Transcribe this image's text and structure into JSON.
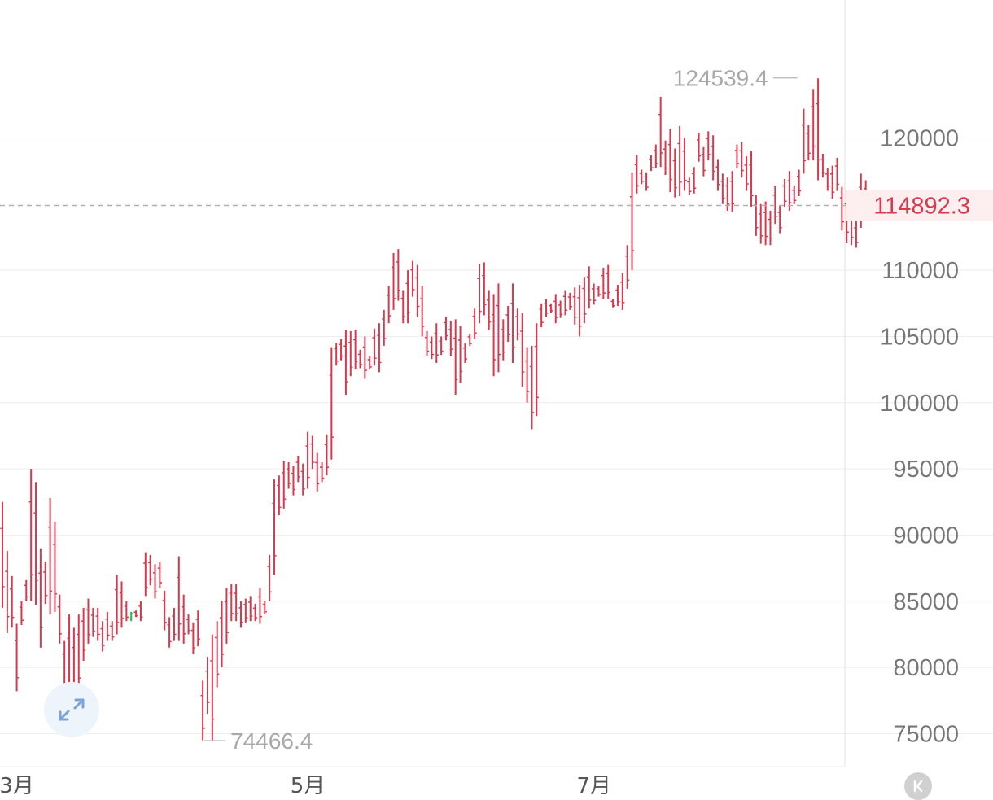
{
  "chart_data": {
    "type": "ohlc",
    "y_axis_ticks": [
      "120000",
      "110000",
      "105000",
      "100000",
      "95000",
      "90000",
      "85000",
      "80000",
      "75000"
    ],
    "y_axis_values": [
      120000,
      110000,
      105000,
      100000,
      95000,
      90000,
      85000,
      80000,
      75000
    ],
    "ylim": [
      73000,
      125500
    ],
    "x_axis_labels": [
      {
        "label": "3月",
        "index": 3
      },
      {
        "label": "5月",
        "index": 64
      },
      {
        "label": "7月",
        "index": 124
      }
    ],
    "current_price": 114892.3,
    "current_price_label": "114892.3",
    "max_label": "124539.4",
    "max_index": 167,
    "min_label": "74466.4",
    "min_index": 42,
    "colors": {
      "up": "#2ab44a",
      "down": "#d9394f",
      "grid": "#eeeeee",
      "price_line": "#b0b0b0",
      "price_tag_bg": "#fdeef0"
    },
    "candles": [
      [
        92500,
        84500
      ],
      [
        88800,
        82600
      ],
      [
        86900,
        83000
      ],
      [
        83300,
        78200
      ],
      [
        85000,
        83200
      ],
      [
        86600,
        85000
      ],
      [
        95000,
        85000
      ],
      [
        94000,
        84700
      ],
      [
        89000,
        81500
      ],
      [
        88000,
        84800
      ],
      [
        92800,
        84000
      ],
      [
        91000,
        84200
      ],
      [
        85500,
        81800
      ],
      [
        82000,
        78000
      ],
      [
        84000,
        76800
      ],
      [
        83000,
        77000
      ],
      [
        84000,
        78000
      ],
      [
        84500,
        80500
      ],
      [
        85200,
        81800
      ],
      [
        84500,
        82300
      ],
      [
        84500,
        82000
      ],
      [
        83500,
        81200
      ],
      [
        84200,
        82000
      ],
      [
        83500,
        82000
      ],
      [
        87000,
        82500
      ],
      [
        86500,
        83000
      ],
      [
        85000,
        83500
      ],
      [
        83500,
        84200
      ],
      [
        84300,
        83800
      ],
      [
        85000,
        83500
      ],
      [
        88700,
        85400
      ],
      [
        88500,
        86200
      ],
      [
        87800,
        85200
      ],
      [
        88000,
        86000
      ],
      [
        85800,
        82800
      ],
      [
        83800,
        81500
      ],
      [
        84500,
        82000
      ],
      [
        88400,
        82000
      ],
      [
        85500,
        81800
      ],
      [
        84000,
        82500
      ],
      [
        83400,
        81000
      ],
      [
        84300,
        81600
      ],
      [
        79000,
        74500
      ],
      [
        80800,
        76500
      ],
      [
        82500,
        74500
      ],
      [
        83500,
        78500
      ],
      [
        85000,
        80000
      ],
      [
        86000,
        81800
      ],
      [
        86300,
        83500
      ],
      [
        86300,
        83500
      ],
      [
        85000,
        83000
      ],
      [
        85200,
        83400
      ],
      [
        85400,
        83500
      ],
      [
        84800,
        83500
      ],
      [
        86000,
        83300
      ],
      [
        85000,
        84000
      ],
      [
        88500,
        85000
      ],
      [
        94200,
        87000
      ],
      [
        94500,
        91500
      ],
      [
        95600,
        92000
      ],
      [
        95500,
        93500
      ],
      [
        95200,
        93000
      ],
      [
        96000,
        94000
      ],
      [
        95400,
        93000
      ],
      [
        97800,
        93500
      ],
      [
        97500,
        95000
      ],
      [
        96200,
        93300
      ],
      [
        95500,
        94000
      ],
      [
        97600,
        94500
      ],
      [
        104200,
        95700
      ],
      [
        104500,
        102800
      ],
      [
        104800,
        103200
      ],
      [
        105500,
        100600
      ],
      [
        105400,
        102000
      ],
      [
        105500,
        102500
      ],
      [
        104000,
        102600
      ],
      [
        105000,
        101800
      ],
      [
        103500,
        102500
      ],
      [
        105600,
        102800
      ],
      [
        106000,
        102300
      ],
      [
        107000,
        104300
      ],
      [
        108800,
        106000
      ],
      [
        111300,
        107000
      ],
      [
        111600,
        107700
      ],
      [
        108500,
        106000
      ],
      [
        110000,
        106000
      ],
      [
        110700,
        108000
      ],
      [
        110400,
        106500
      ],
      [
        108800,
        105000
      ],
      [
        105400,
        103500
      ],
      [
        105000,
        103300
      ],
      [
        106000,
        103000
      ],
      [
        105000,
        103600
      ],
      [
        106500,
        104700
      ],
      [
        106200,
        103500
      ],
      [
        106300,
        100600
      ],
      [
        105800,
        101500
      ],
      [
        104500,
        103000
      ],
      [
        105200,
        104300
      ],
      [
        107100,
        104800
      ],
      [
        110500,
        106000
      ],
      [
        110600,
        106600
      ],
      [
        108500,
        105500
      ],
      [
        108200,
        102000
      ],
      [
        109000,
        102300
      ],
      [
        106300,
        103200
      ],
      [
        107300,
        104600
      ],
      [
        109000,
        103000
      ],
      [
        107100,
        104700
      ],
      [
        106800,
        101200
      ],
      [
        104200,
        100000
      ],
      [
        104300,
        98000
      ],
      [
        106000,
        99000
      ],
      [
        107500,
        105700
      ],
      [
        107800,
        106500
      ],
      [
        107500,
        106800
      ],
      [
        108200,
        106000
      ],
      [
        107700,
        106400
      ],
      [
        108500,
        106600
      ],
      [
        108300,
        107000
      ],
      [
        108700,
        105900
      ],
      [
        108900,
        105000
      ],
      [
        109500,
        106000
      ],
      [
        110300,
        107100
      ],
      [
        109000,
        107400
      ],
      [
        108800,
        108000
      ],
      [
        110200,
        107800
      ],
      [
        110400,
        107800
      ],
      [
        107800,
        107200
      ],
      [
        108900,
        107300
      ],
      [
        109800,
        107000
      ],
      [
        111900,
        108600
      ],
      [
        117400,
        110000
      ],
      [
        118700,
        115800
      ],
      [
        117600,
        116500
      ],
      [
        117400,
        116000
      ],
      [
        118700,
        117500
      ],
      [
        119500,
        117700
      ],
      [
        123100,
        117800
      ],
      [
        119800,
        117200
      ],
      [
        120700,
        115900
      ],
      [
        119200,
        115500
      ],
      [
        120900,
        115600
      ],
      [
        120000,
        116000
      ],
      [
        117000,
        115700
      ],
      [
        117800,
        115800
      ],
      [
        120400,
        118200
      ],
      [
        119300,
        117100
      ],
      [
        120500,
        118300
      ],
      [
        120200,
        116800
      ],
      [
        118400,
        116000
      ],
      [
        117300,
        115000
      ],
      [
        117000,
        114500
      ],
      [
        117500,
        114400
      ],
      [
        119500,
        117700
      ],
      [
        119700,
        117000
      ],
      [
        118600,
        116000
      ],
      [
        119000,
        114800
      ],
      [
        115700,
        112600
      ],
      [
        115000,
        112000
      ],
      [
        115200,
        111900
      ],
      [
        114500,
        111900
      ],
      [
        116400,
        113500
      ],
      [
        114900,
        112800
      ],
      [
        116900,
        114800
      ],
      [
        117500,
        114500
      ],
      [
        116400,
        115000
      ],
      [
        117600,
        115600
      ],
      [
        122200,
        117300
      ],
      [
        121000,
        118300
      ],
      [
        123700,
        118300
      ],
      [
        124500,
        116800
      ],
      [
        118800,
        117000
      ],
      [
        117700,
        116000
      ],
      [
        117900,
        115400
      ],
      [
        118500,
        116000
      ],
      [
        116300,
        113000
      ],
      [
        116000,
        112100
      ],
      [
        114800,
        111900
      ],
      [
        113700,
        111700
      ],
      [
        117300,
        113200
      ],
      [
        116800,
        114300
      ],
      [
        115300,
        114800
      ]
    ]
  }
}
